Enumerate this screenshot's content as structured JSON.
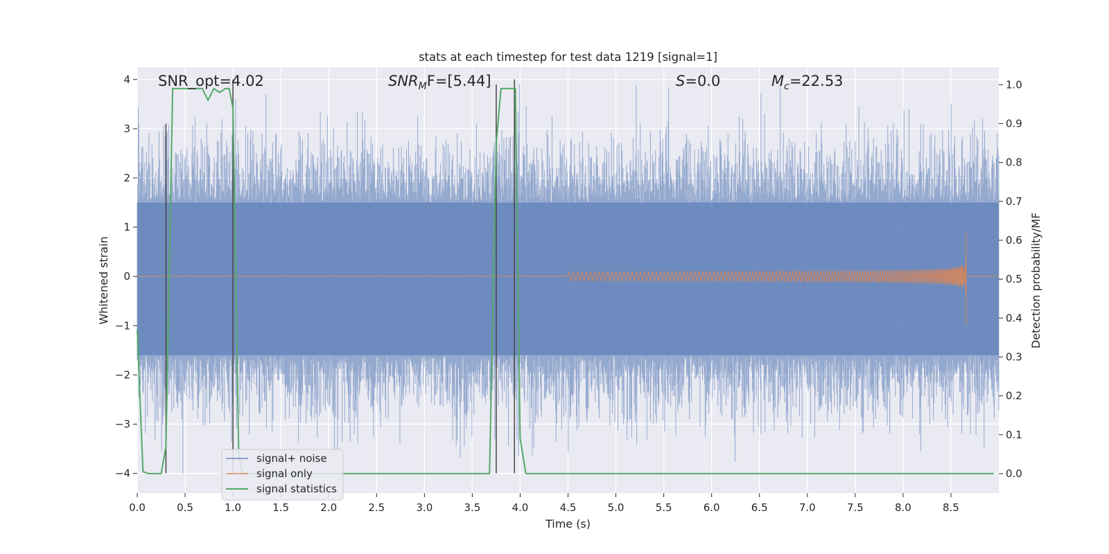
{
  "chart_data": {
    "type": "line",
    "title": "stats at each timestep for test data 1219 [signal=1]",
    "xlabel": "Time (s)",
    "ylabel": "Whitened strain",
    "y2label": "Detection probability/MF",
    "xlim": [
      0,
      9.0
    ],
    "ylim": [
      -4.4,
      4.25
    ],
    "y2lim": [
      -0.05,
      1.045
    ],
    "x_ticks": [
      0.0,
      0.5,
      1.0,
      1.5,
      2.0,
      2.5,
      3.0,
      3.5,
      4.0,
      4.5,
      5.0,
      5.5,
      6.0,
      6.5,
      7.0,
      7.5,
      8.0,
      8.5
    ],
    "x_tick_labels": [
      "0.0",
      "0.5",
      "1.0",
      "1.5",
      "2.0",
      "2.5",
      "3.0",
      "3.5",
      "4.0",
      "4.5",
      "5.0",
      "5.5",
      "6.0",
      "6.5",
      "7.0",
      "7.5",
      "8.0",
      "8.5"
    ],
    "y_ticks": [
      -4,
      -3,
      -2,
      -1,
      0,
      1,
      2,
      3,
      4
    ],
    "y_tick_labels": [
      "−4",
      "−3",
      "−2",
      "−1",
      "0",
      "1",
      "2",
      "3",
      "4"
    ],
    "y2_ticks": [
      0.0,
      0.1,
      0.2,
      0.3,
      0.4,
      0.5,
      0.6,
      0.7,
      0.8,
      0.9,
      1.0
    ],
    "y2_tick_labels": [
      "0.0",
      "0.1",
      "0.2",
      "0.3",
      "0.4",
      "0.5",
      "0.6",
      "0.7",
      "0.8",
      "0.9",
      "1.0"
    ],
    "grid": true,
    "legend_position": "lower-left",
    "annotations": {
      "snr_opt": "SNR_opt=4.02",
      "snr_mf_base": "SNR",
      "snr_mf_sub": "M",
      "snr_mf_rest": "F=[5.44]",
      "s_italic": "S",
      "s_rest": "=0.0",
      "mc_base": "M",
      "mc_sub": "c",
      "mc_rest": "=22.53"
    },
    "series": [
      {
        "name": "signal+ noise",
        "color": "#4c72b0",
        "kind": "noise",
        "x_range": [
          0,
          9.0
        ],
        "envelope": {
          "typical_max": 1.5,
          "typical_min": -1.6,
          "peak_max": 3.9,
          "peak_min": -4.0
        }
      },
      {
        "name": "signal only",
        "color": "#dd8452",
        "kind": "chirp",
        "x_range": [
          4.5,
          8.66
        ],
        "merger_time": 8.66,
        "merger_amplitude": 0.9
      },
      {
        "name": "signal statistics",
        "color": "#55a868",
        "kind": "line",
        "axis": "right",
        "x": [
          0.0,
          0.06,
          0.12,
          0.25,
          0.3,
          0.37,
          0.5,
          0.6,
          0.68,
          0.74,
          0.8,
          0.86,
          0.92,
          0.96,
          1.0,
          1.03,
          1.06,
          1.1,
          1.3,
          2.0,
          3.0,
          3.68,
          3.75,
          3.8,
          3.95,
          4.0,
          4.06,
          4.2,
          5.0,
          6.0,
          7.0,
          8.0,
          8.95
        ],
        "y": [
          0.37,
          0.005,
          0.0,
          0.0,
          0.07,
          0.99,
          0.99,
          0.99,
          0.99,
          0.96,
          0.99,
          0.98,
          0.99,
          0.99,
          0.94,
          0.5,
          0.05,
          0.0,
          0.0,
          0.0,
          0.0,
          0.0,
          0.85,
          0.99,
          0.99,
          0.09,
          0.0,
          0.0,
          0.0,
          0.0,
          0.0,
          0.0,
          0.0
        ]
      }
    ],
    "vertical_markers": {
      "color": "#444444",
      "x": [
        0.3,
        1.0,
        3.75,
        3.94
      ],
      "y_top": [
        3.1,
        4.0,
        3.9,
        4.0
      ],
      "y_bottom": -4.0
    }
  }
}
